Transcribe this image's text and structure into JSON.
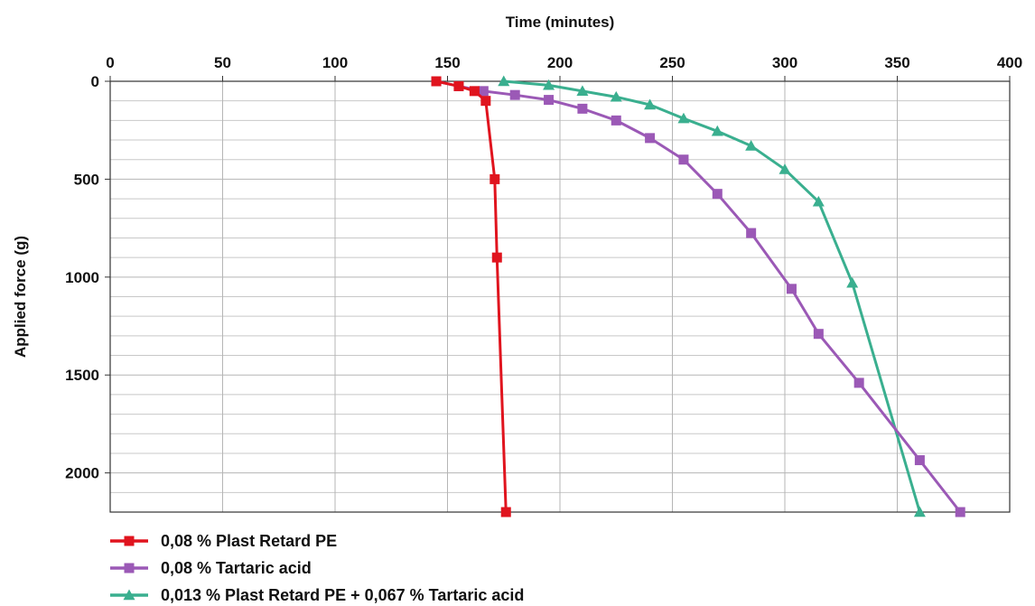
{
  "chart_data": {
    "type": "line",
    "xlabel": "Time (minutes)",
    "ylabel": "Applied force (g)",
    "xlim": [
      0,
      400
    ],
    "ylim": [
      0,
      2200
    ],
    "y_inverted": true,
    "x_axis_position": "top",
    "x_ticks": [
      0,
      50,
      100,
      150,
      200,
      250,
      300,
      350,
      400
    ],
    "y_ticks": [
      0,
      500,
      1000,
      1500,
      2000
    ],
    "grid": true,
    "legend_position": "bottom-left",
    "series": [
      {
        "name": "0,08 % Plast Retard PE",
        "color": "#e0141e",
        "marker": "square",
        "x": [
          145,
          155,
          162,
          167,
          171,
          172,
          176
        ],
        "y": [
          0,
          25,
          50,
          100,
          500,
          900,
          2200
        ]
      },
      {
        "name": "0,08 % Tartaric acid",
        "color": "#9b59b6",
        "marker": "square",
        "x": [
          145,
          155,
          166,
          180,
          195,
          210,
          225,
          240,
          255,
          270,
          285,
          303,
          315,
          333,
          360,
          378
        ],
        "y": [
          0,
          25,
          50,
          70,
          95,
          140,
          200,
          290,
          400,
          575,
          775,
          1060,
          1290,
          1540,
          1935,
          2200
        ]
      },
      {
        "name": "0,013 % Plast Retard PE + 0,067 % Tartaric acid",
        "color": "#3aaf8f",
        "marker": "triangle",
        "x": [
          175,
          195,
          210,
          225,
          240,
          255,
          270,
          285,
          300,
          315,
          330,
          360
        ],
        "y": [
          0,
          20,
          50,
          80,
          120,
          190,
          255,
          330,
          450,
          615,
          1030,
          2200
        ]
      }
    ]
  }
}
